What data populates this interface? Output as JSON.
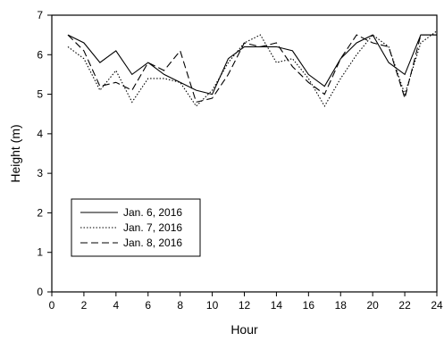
{
  "chart_data": {
    "type": "line",
    "xlabel": "Hour",
    "ylabel": "Height (m)",
    "xlim": [
      0,
      24
    ],
    "ylim": [
      0,
      7
    ],
    "xticks": [
      0,
      2,
      4,
      6,
      8,
      10,
      12,
      14,
      16,
      18,
      20,
      22,
      24
    ],
    "yticks": [
      0,
      1,
      2,
      3,
      4,
      5,
      6,
      7
    ],
    "grid": false,
    "legend": {
      "position": "bottom-left"
    },
    "x": [
      1,
      2,
      3,
      4,
      5,
      6,
      7,
      8,
      9,
      10,
      11,
      12,
      13,
      14,
      15,
      16,
      17,
      18,
      19,
      20,
      21,
      22,
      23,
      24
    ],
    "series": [
      {
        "name": "Jan. 6, 2016",
        "dash": "solid",
        "values": [
          6.5,
          6.3,
          5.8,
          6.1,
          5.5,
          5.8,
          5.5,
          5.3,
          5.1,
          5.0,
          5.9,
          6.2,
          6.2,
          6.2,
          6.1,
          5.5,
          5.2,
          5.9,
          6.3,
          6.5,
          5.8,
          5.5,
          6.5,
          6.5
        ]
      },
      {
        "name": "Jan. 7, 2016",
        "dash": "dotted",
        "values": [
          6.2,
          5.9,
          5.1,
          5.6,
          4.8,
          5.4,
          5.4,
          5.3,
          4.7,
          5.1,
          5.8,
          6.3,
          6.5,
          5.8,
          5.9,
          5.4,
          4.7,
          5.4,
          6.0,
          6.5,
          6.2,
          5.0,
          6.3,
          6.6
        ]
      },
      {
        "name": "Jan. 8, 2016",
        "dash": "dashed",
        "values": [
          6.5,
          6.1,
          5.2,
          5.3,
          5.1,
          5.8,
          5.6,
          6.1,
          4.8,
          4.9,
          5.5,
          6.3,
          6.2,
          6.3,
          5.7,
          5.3,
          5.0,
          5.9,
          6.5,
          6.3,
          6.2,
          4.9,
          6.5,
          6.5
        ]
      }
    ]
  },
  "colors": {
    "line": "#000000",
    "background": "#ffffff"
  }
}
